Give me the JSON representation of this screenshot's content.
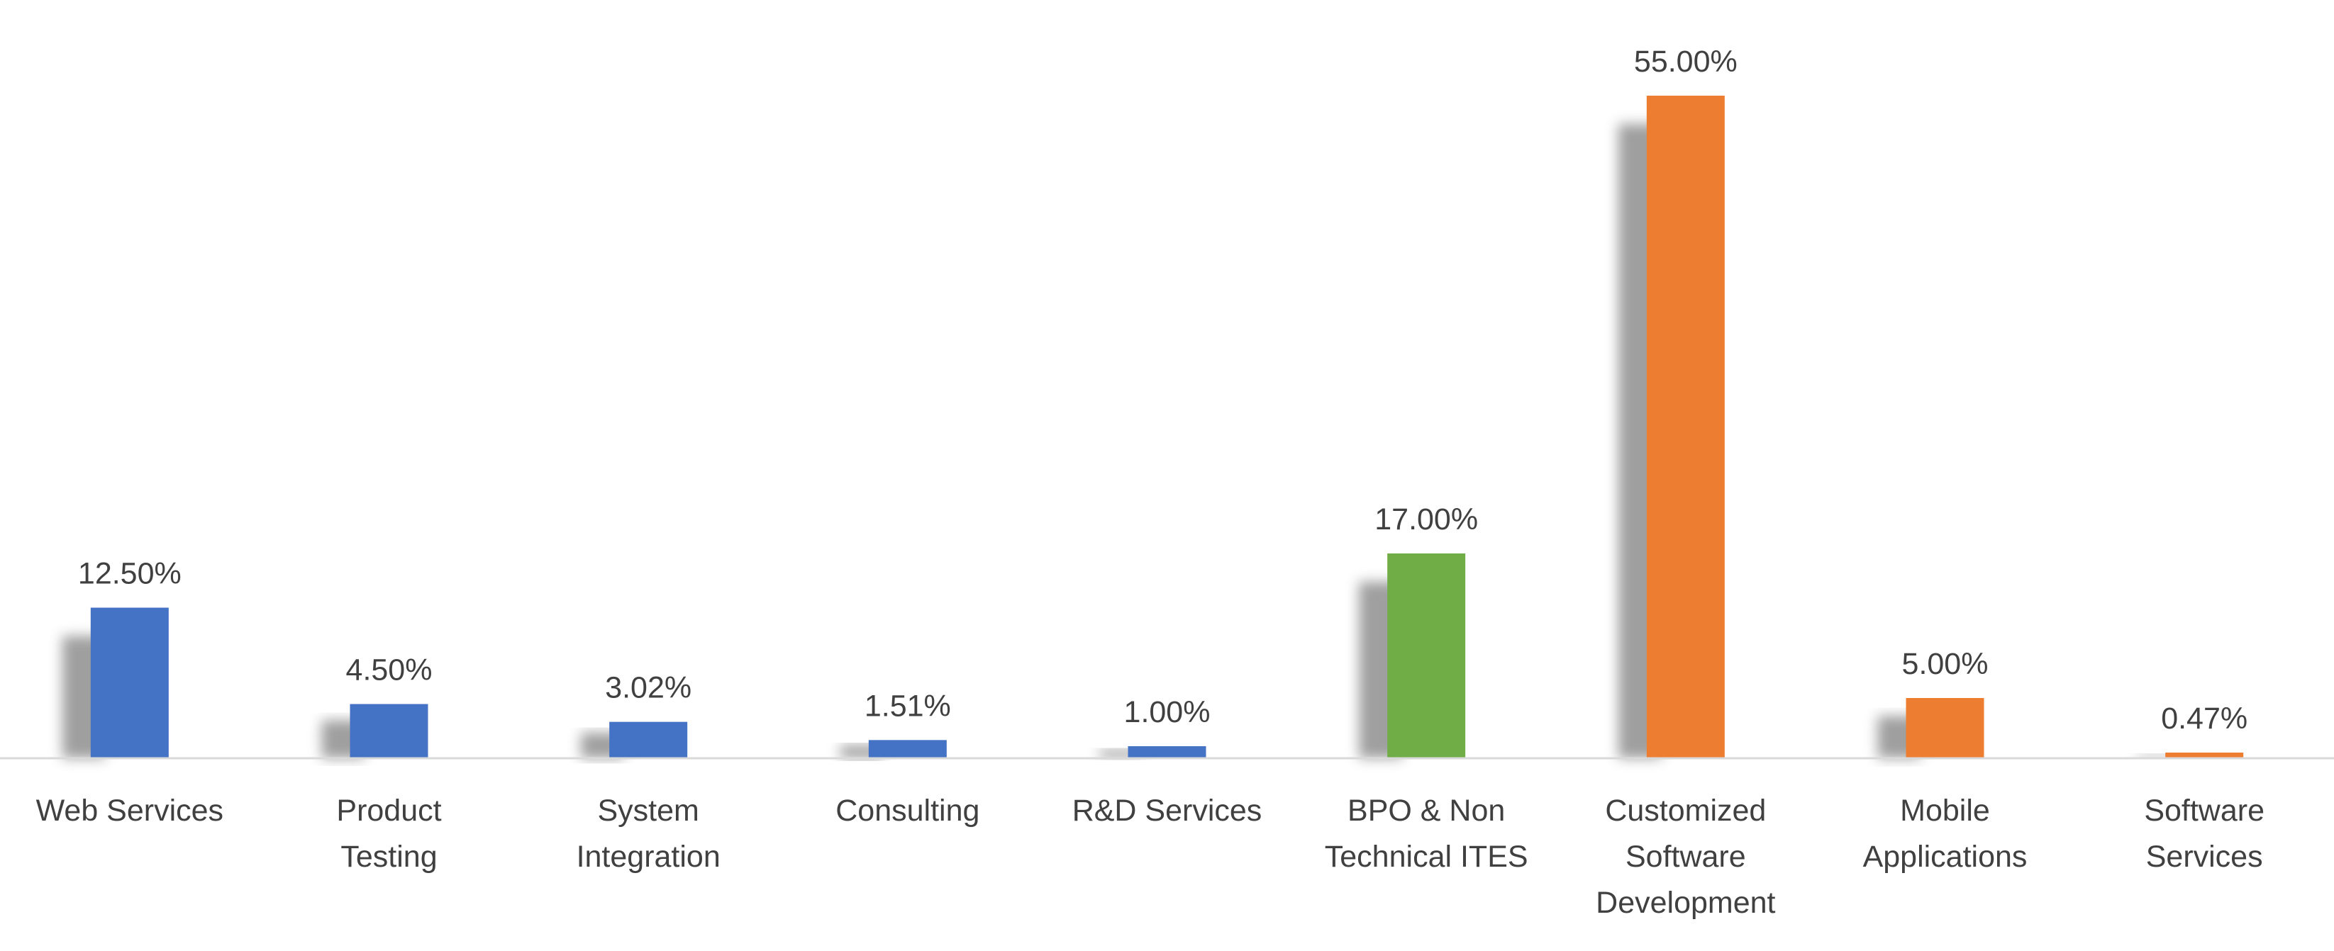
{
  "chart_data": {
    "type": "bar",
    "title": "",
    "xlabel": "",
    "ylabel": "",
    "ylim": [
      0,
      55
    ],
    "grid": false,
    "legend": "none",
    "categories": [
      [
        "Web Services"
      ],
      [
        "Product",
        "Testing"
      ],
      [
        "System",
        "Integration"
      ],
      [
        "Consulting"
      ],
      [
        "R&D Services"
      ],
      [
        "BPO & Non",
        "Technical ITES"
      ],
      [
        "Customized",
        "Software",
        "Development"
      ],
      [
        "Mobile",
        "Applications"
      ],
      [
        "Software",
        "Services"
      ]
    ],
    "values": [
      12.5,
      4.5,
      3.02,
      1.51,
      1.0,
      17.0,
      55.0,
      5.0,
      0.47
    ],
    "value_labels": [
      "12.50%",
      "4.50%",
      "3.02%",
      "1.51%",
      "1.00%",
      "17.00%",
      "55.00%",
      "5.00%",
      "0.47%"
    ],
    "colors": [
      "#4472C4",
      "#4472C4",
      "#4472C4",
      "#4472C4",
      "#4472C4",
      "#70AD47",
      "#ED7D31",
      "#ED7D31",
      "#ED7D31"
    ],
    "axis_color": "#D9D9D9",
    "shadow_color": "#7F7F7F"
  }
}
